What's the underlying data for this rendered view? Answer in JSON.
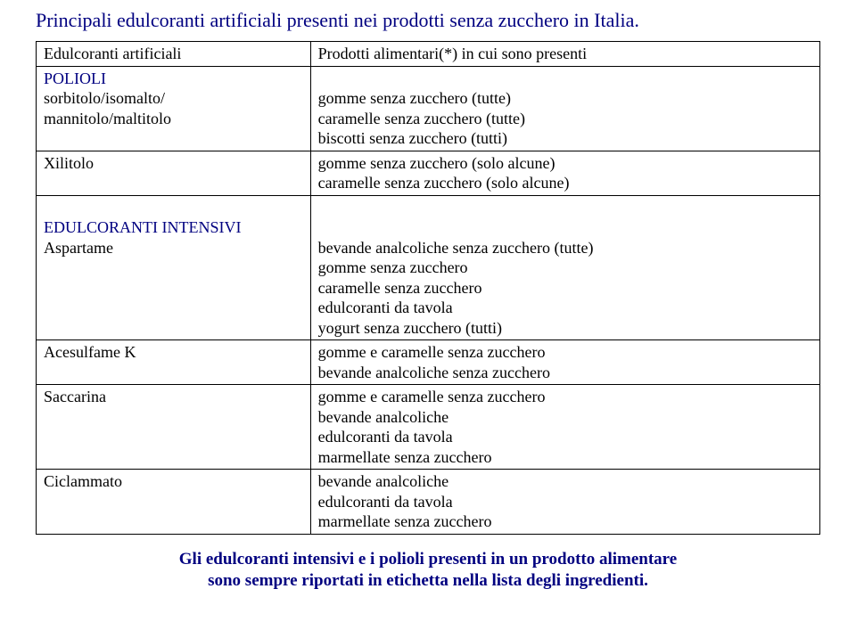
{
  "colors": {
    "title": "#000080",
    "section_label": "#000080",
    "footer": "#000080",
    "body_text": "#000000",
    "border": "#000000",
    "background": "#ffffff"
  },
  "typography": {
    "body_family": "Bookman Old Style, Times New Roman, serif",
    "footer_family": "Georgia, Times New Roman, serif",
    "title_fontsize": 22,
    "body_fontsize": 18,
    "footer_fontsize": 19
  },
  "title": "Principali edulcoranti artificiali presenti nei prodotti senza zucchero in Italia.",
  "headers": {
    "left": "Edulcoranti artificiali",
    "right": "Prodotti alimentari(*) in cui sono presenti"
  },
  "sections": {
    "polioli": {
      "label": "POLIOLI",
      "rows": [
        {
          "left_lines": [
            "sorbitolo/isomalto/",
            "mannitolo/maltitolo"
          ],
          "right_lines": [
            "gomme senza zucchero (tutte)",
            "caramelle senza zucchero (tutte)",
            "biscotti senza zucchero (tutti)"
          ]
        },
        {
          "left_lines": [
            "Xilitolo"
          ],
          "right_lines": [
            "gomme senza zucchero (solo alcune)",
            "caramelle senza zucchero (solo alcune)"
          ]
        }
      ]
    },
    "intensivi": {
      "label": "EDULCORANTI INTENSIVI",
      "rows": [
        {
          "left_lines": [
            "Aspartame"
          ],
          "right_lines": [
            "bevande analcoliche senza zucchero (tutte)",
            "gomme senza zucchero",
            "caramelle senza zucchero",
            "edulcoranti da tavola",
            "yogurt senza zucchero (tutti)"
          ]
        },
        {
          "left_lines": [
            "Acesulfame K"
          ],
          "right_lines": [
            "gomme e caramelle senza zucchero",
            "bevande analcoliche senza zucchero"
          ]
        },
        {
          "left_lines": [
            "Saccarina"
          ],
          "right_lines": [
            "gomme e caramelle senza zucchero",
            "bevande analcoliche",
            "edulcoranti da tavola",
            "marmellate senza zucchero"
          ]
        },
        {
          "left_lines": [
            "Ciclammato"
          ],
          "right_lines": [
            "bevande analcoliche",
            "edulcoranti da tavola",
            "marmellate senza zucchero"
          ]
        }
      ]
    }
  },
  "footer": {
    "line1": "Gli edulcoranti intensivi e i polioli presenti in un prodotto alimentare",
    "line2": "sono sempre riportati in etichetta nella lista degli ingredienti."
  }
}
